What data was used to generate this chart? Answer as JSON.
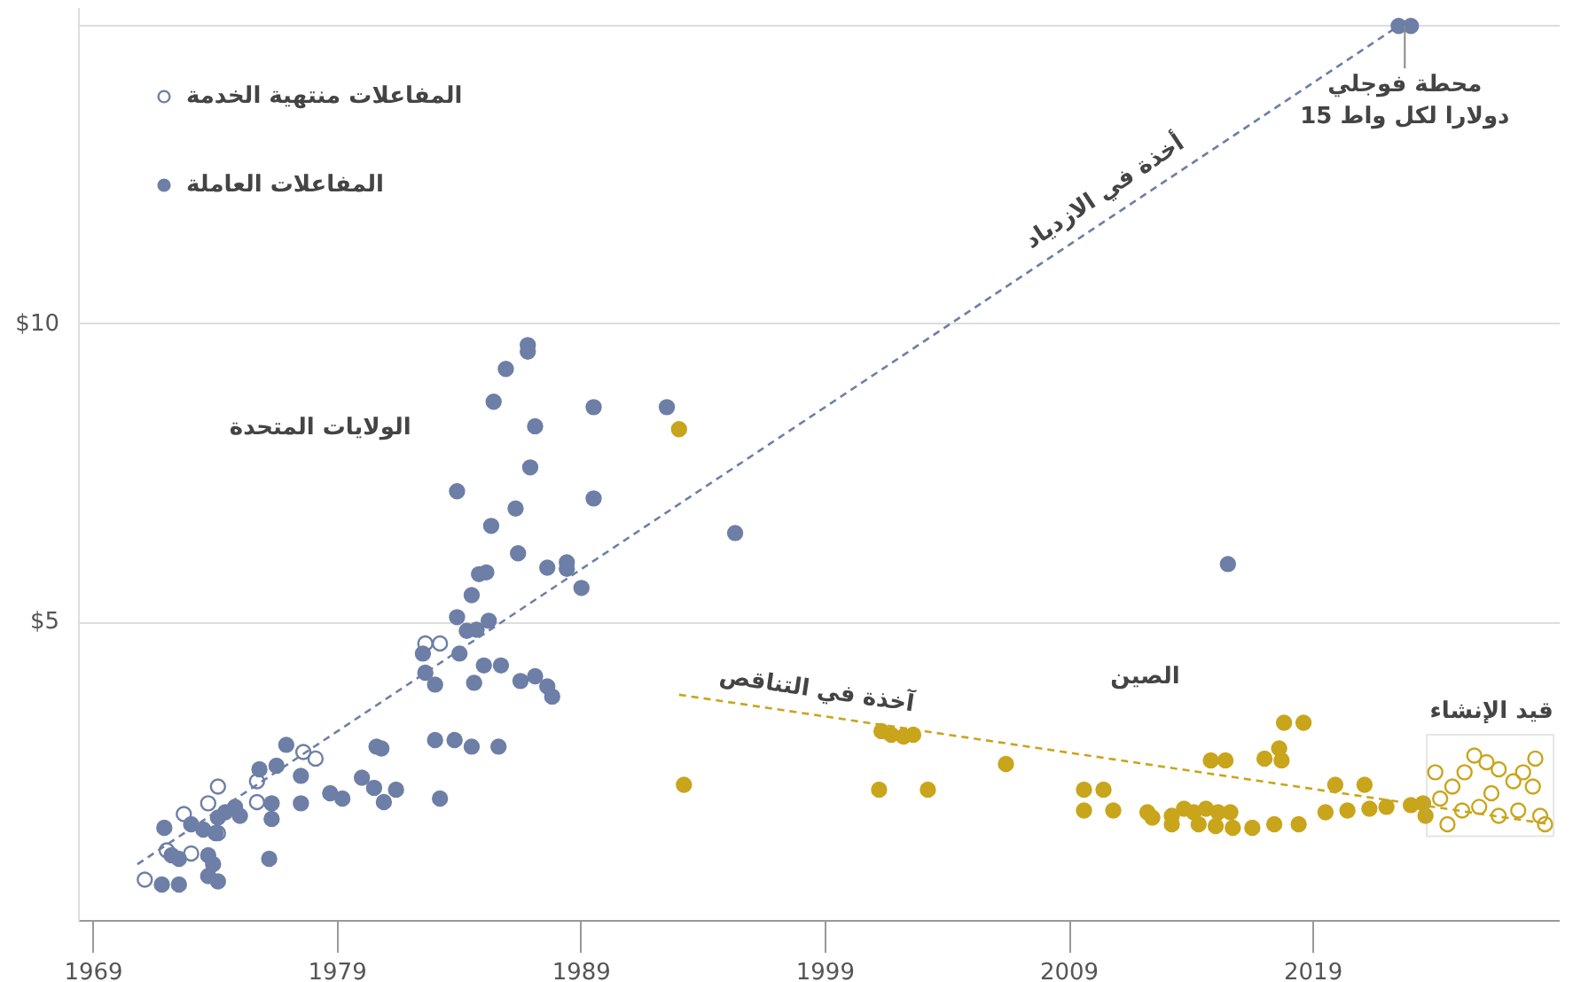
{
  "chart_data": {
    "type": "scatter",
    "xlim": [
      1968.4,
      2029.1
    ],
    "ylim": [
      0,
      15.3
    ],
    "xticks": [
      1969,
      1979,
      1989,
      1999,
      2009,
      2019
    ],
    "yticks": [
      {
        "value": 5,
        "label": "$5"
      },
      {
        "value": 10,
        "label": "$10"
      },
      {
        "value": 15,
        "label": null
      }
    ],
    "grid": "y",
    "legend": "top left",
    "marker": "circle",
    "series": [
      {
        "name": "المفاعلات منتهية الخدمة",
        "color": "#6d7fa6",
        "x": [
          1982.6,
          1983.2,
          1971.1,
          1973.0,
          1972.0,
          1973.7,
          1974.1,
          1972.7,
          1975.7,
          1978.1,
          1977.6,
          1975.7,
          1974.1
        ],
        "values": [
          4.65,
          4.65,
          0.69,
          1.13,
          1.18,
          1.97,
          2.25,
          1.79,
          1.99,
          2.72,
          2.83,
          2.34,
          1.47
        ]
      },
      {
        "name": "المفاعلات العاملة",
        "color": "#6d7fa6",
        "x": [
          1986.8,
          1986.8,
          1985.9,
          1985.4,
          1989.5,
          1992.5,
          1987.1,
          1986.9,
          1983.9,
          1986.3,
          1989.5,
          1995.3,
          1985.3,
          1986.4,
          1987.6,
          1988.4,
          1988.4,
          1989.0,
          1984.8,
          1985.1,
          1984.5,
          1983.9,
          1984.3,
          1984.7,
          1985.2,
          1982.5,
          1984.0,
          1982.6,
          1985.0,
          1985.7,
          1983.0,
          1984.6,
          1986.5,
          1987.1,
          1987.6,
          1987.8,
          2015.5,
          2022.5,
          2023.0,
          1976.9,
          1980.6,
          1980.8,
          1983.0,
          1983.8,
          1984.5,
          1985.6,
          1975.8,
          1976.5,
          1977.5,
          1980.0,
          1978.7,
          1979.2,
          1980.5,
          1980.9,
          1981.4,
          1983.2,
          1977.5,
          1976.3,
          1976.3,
          1974.8,
          1974.4,
          1975.0,
          1974.1,
          1973.5,
          1974.0,
          1973.0,
          1971.9,
          1972.2,
          1972.5,
          1973.7,
          1973.9,
          1973.7,
          1974.1,
          1971.8,
          1972.5,
          1976.2
        ],
        "values": [
          9.65,
          9.54,
          9.25,
          8.7,
          8.61,
          8.61,
          8.29,
          7.6,
          7.2,
          6.91,
          7.08,
          6.5,
          6.62,
          6.16,
          5.92,
          6.01,
          5.9,
          5.58,
          5.81,
          5.84,
          5.46,
          5.09,
          4.86,
          4.88,
          5.03,
          4.48,
          4.48,
          4.16,
          4.28,
          4.28,
          3.96,
          3.99,
          4.02,
          4.1,
          3.93,
          3.76,
          5.98,
          15.0,
          15.0,
          2.95,
          2.92,
          2.89,
          3.03,
          3.03,
          2.92,
          2.92,
          2.54,
          2.6,
          2.43,
          2.4,
          2.14,
          2.05,
          2.23,
          1.99,
          2.2,
          2.05,
          1.97,
          1.97,
          1.71,
          1.91,
          1.82,
          1.76,
          1.73,
          1.53,
          1.47,
          1.62,
          1.56,
          1.1,
          1.04,
          1.1,
          0.95,
          0.75,
          0.66,
          0.61,
          0.61,
          1.04
        ]
      },
      {
        "color": "#c9a51c",
        "x": [
          1993.0,
          1993.2,
          2001.3,
          2001.7,
          2002.2,
          2002.6,
          2001.2,
          2003.2,
          2006.4,
          2009.6,
          2010.4,
          2009.6,
          2010.8,
          2012.2,
          2012.4,
          2013.2,
          2013.7,
          2014.1,
          2014.6,
          2015.1,
          2015.6,
          2013.2,
          2014.3,
          2015.0,
          2015.7,
          2016.5,
          2017.4,
          2018.4,
          2014.8,
          2015.4,
          2017.0,
          2017.6,
          2017.7,
          2017.8,
          2018.6,
          2019.9,
          2021.1,
          2019.5,
          2020.4,
          2021.3,
          2022.0,
          2023.0,
          2023.5,
          2023.6
        ],
        "values": [
          8.24,
          2.28,
          3.18,
          3.12,
          3.09,
          3.12,
          2.2,
          2.2,
          2.63,
          2.2,
          2.2,
          1.85,
          1.85,
          1.82,
          1.73,
          1.76,
          1.88,
          1.82,
          1.88,
          1.82,
          1.82,
          1.62,
          1.62,
          1.59,
          1.56,
          1.56,
          1.62,
          1.62,
          2.69,
          2.69,
          2.72,
          2.89,
          2.69,
          3.32,
          3.32,
          2.28,
          2.28,
          1.82,
          1.85,
          1.88,
          1.91,
          1.94,
          1.97,
          1.76
        ]
      },
      {
        "color": "#c9a51c",
        "x": [
          2024.2,
          2024.7,
          2025.2,
          2025.6,
          2026.1,
          2026.6,
          2027.2,
          2027.6,
          2028.0,
          2025.8,
          2026.6,
          2027.4,
          2028.3,
          2028.5,
          2024.5,
          2025.1,
          2026.3,
          2028.1,
          2024.0
        ],
        "values": [
          2.05,
          2.25,
          2.49,
          2.77,
          2.66,
          2.54,
          2.34,
          2.49,
          2.25,
          1.91,
          1.76,
          1.85,
          1.76,
          1.62,
          1.62,
          1.85,
          2.14,
          2.72,
          2.49
        ]
      },
      {
        "type": "line",
        "marker": "none",
        "line_style": "dashed",
        "color": "#6d7fa6",
        "x": [
          1970.8,
          2022.5
        ],
        "values": [
          0.95,
          15.0
        ]
      },
      {
        "type": "line",
        "marker": "none",
        "line_style": "dashed",
        "color": "#c9a51c",
        "x": [
          1993.0,
          2028.7
        ],
        "values": [
          3.79,
          1.62
        ]
      }
    ],
    "annotations": [
      "الولايات المتحدة",
      "الصين",
      "قيد الإنشاء",
      {
        "text": "أخذة في الازدياد",
        "x": 2011.0,
        "y": 11.87
      },
      {
        "text": "آخذة في التناقص",
        "x": 1998.5,
        "y": 3.46
      },
      {
        "text": "محطة فوجلي\n15 دولارا لكل واط",
        "x": 2022.75,
        "y": 15.0
      }
    ]
  }
}
